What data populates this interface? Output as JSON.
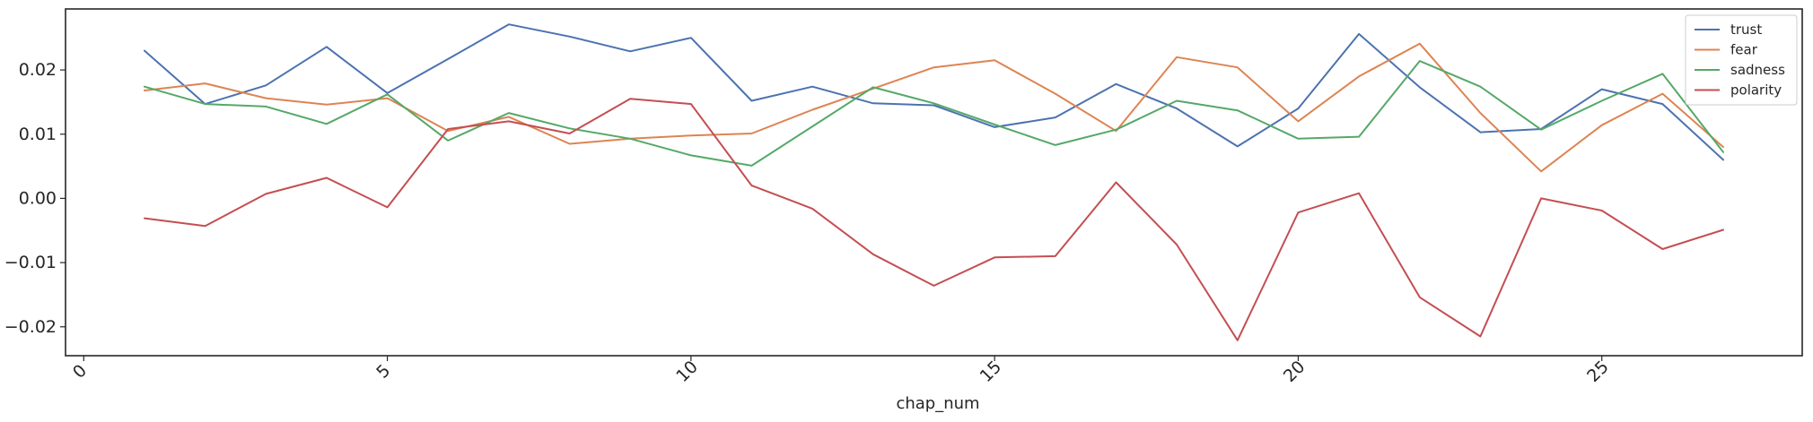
{
  "chart_data": {
    "type": "line",
    "title": "",
    "xlabel": "chap_num",
    "ylabel": "",
    "xlim": [
      -0.3,
      28.3
    ],
    "ylim": [
      -0.0245,
      0.0295
    ],
    "xticks": [
      0,
      5,
      10,
      15,
      20,
      25
    ],
    "xtick_labels": [
      "0",
      "5",
      "10",
      "15",
      "20",
      "25"
    ],
    "yticks": [
      -0.02,
      -0.01,
      0.0,
      0.01,
      0.02
    ],
    "ytick_labels": [
      "−0.02",
      "−0.01",
      "0.00",
      "0.01",
      "0.02"
    ],
    "grid": false,
    "legend_position": "top-right",
    "x": [
      1,
      2,
      3,
      4,
      5,
      6,
      7,
      8,
      9,
      10,
      11,
      12,
      13,
      14,
      15,
      16,
      17,
      18,
      19,
      20,
      21,
      22,
      23,
      24,
      25,
      26,
      27
    ],
    "series": [
      {
        "name": "trust",
        "color": "#4c72b0",
        "values": [
          0.023,
          0.0147,
          0.0176,
          0.0236,
          0.0164,
          0.0217,
          0.0271,
          0.0252,
          0.0229,
          0.025,
          0.0152,
          0.0174,
          0.0148,
          0.0145,
          0.0111,
          0.0126,
          0.0178,
          0.014,
          0.0081,
          0.014,
          0.0256,
          0.0173,
          0.0103,
          0.0108,
          0.017,
          0.0147,
          0.006
        ]
      },
      {
        "name": "fear",
        "color": "#dd8452",
        "values": [
          0.0168,
          0.0179,
          0.0156,
          0.0146,
          0.0156,
          0.0105,
          0.0127,
          0.0085,
          0.0093,
          0.0098,
          0.0101,
          0.0138,
          0.0171,
          0.0204,
          0.0215,
          0.0163,
          0.0105,
          0.022,
          0.0204,
          0.012,
          0.019,
          0.0241,
          0.0133,
          0.0042,
          0.0114,
          0.0163,
          0.008
        ]
      },
      {
        "name": "sadness",
        "color": "#55a868",
        "values": [
          0.0174,
          0.0147,
          0.0143,
          0.0116,
          0.0162,
          0.009,
          0.0133,
          0.0109,
          0.0093,
          0.0067,
          0.0051,
          0.0112,
          0.0173,
          0.0148,
          0.0115,
          0.0083,
          0.0107,
          0.0152,
          0.0137,
          0.0093,
          0.0096,
          0.0214,
          0.0174,
          0.0107,
          0.0152,
          0.0194,
          0.0072
        ]
      },
      {
        "name": "polarity",
        "color": "#c44e52",
        "values": [
          -0.0031,
          -0.0043,
          0.0007,
          0.0032,
          -0.0014,
          0.0108,
          0.012,
          0.0101,
          0.0155,
          0.0147,
          0.002,
          -0.0016,
          -0.0087,
          -0.0136,
          -0.0092,
          -0.009,
          0.0025,
          -0.0072,
          -0.0221,
          -0.0022,
          0.0008,
          -0.0154,
          -0.0215,
          0.0,
          -0.0019,
          -0.0079,
          -0.0049
        ]
      }
    ]
  }
}
